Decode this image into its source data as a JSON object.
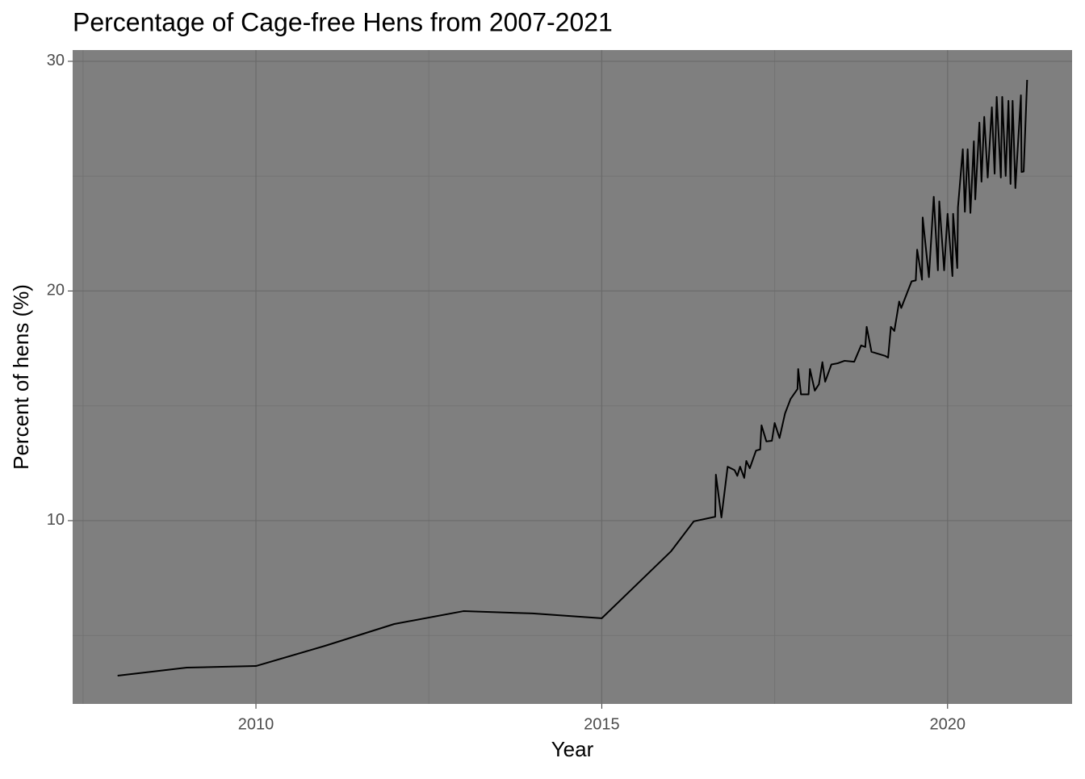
{
  "chart_data": {
    "type": "line",
    "title": "Percentage of Cage-free Hens from 2007-2021",
    "x_label": "Year",
    "y_label": "Percent of hens (%)",
    "x": [
      2008,
      2009,
      2010,
      2011,
      2012,
      2013,
      2014,
      2015,
      2016,
      2016.33,
      2016.64,
      2016.65,
      2016.73,
      2016.82,
      2016.92,
      2016.96,
      2017.0,
      2017.06,
      2017.09,
      2017.14,
      2017.23,
      2017.29,
      2017.31,
      2017.38,
      2017.46,
      2017.5,
      2017.57,
      2017.65,
      2017.73,
      2017.83,
      2017.84,
      2017.88,
      2017.99,
      2018.01,
      2018.08,
      2018.14,
      2018.19,
      2018.23,
      2018.32,
      2018.41,
      2018.51,
      2018.65,
      2018.75,
      2018.81,
      2018.83,
      2018.9,
      2019.1,
      2019.14,
      2019.18,
      2019.23,
      2019.3,
      2019.33,
      2019.42,
      2019.48,
      2019.54,
      2019.56,
      2019.63,
      2019.64,
      2019.73,
      2019.8,
      2019.86,
      2019.88,
      2019.95,
      2020.0,
      2020.07,
      2020.08,
      2020.14,
      2020.15,
      2020.22,
      2020.25,
      2020.29,
      2020.33,
      2020.38,
      2020.4,
      2020.46,
      2020.49,
      2020.53,
      2020.58,
      2020.64,
      2020.68,
      2020.71,
      2020.77,
      2020.79,
      2020.84,
      2020.88,
      2020.91,
      2020.94,
      2020.98,
      2021.06,
      2021.07,
      2021.1,
      2021.15
    ],
    "values": [
      3.25,
      3.6,
      3.67,
      4.55,
      5.5,
      6.06,
      5.96,
      5.75,
      8.66,
      9.97,
      10.17,
      12.0,
      10.14,
      12.35,
      12.2,
      11.95,
      12.35,
      11.86,
      12.6,
      12.28,
      13.05,
      13.1,
      14.15,
      13.45,
      13.48,
      14.25,
      13.6,
      14.67,
      15.3,
      15.73,
      16.6,
      15.5,
      15.5,
      16.6,
      15.66,
      15.94,
      16.9,
      16.05,
      16.8,
      16.85,
      16.96,
      16.92,
      17.63,
      17.56,
      18.44,
      17.35,
      17.17,
      17.1,
      18.44,
      18.26,
      19.54,
      19.26,
      19.96,
      20.42,
      20.46,
      21.8,
      20.49,
      23.2,
      20.6,
      24.1,
      20.9,
      23.9,
      20.9,
      23.36,
      20.65,
      23.36,
      21.0,
      23.64,
      26.17,
      23.45,
      26.17,
      23.4,
      26.52,
      23.99,
      27.33,
      24.76,
      27.58,
      24.94,
      28.0,
      25.11,
      28.45,
      24.94,
      28.45,
      25.01,
      28.28,
      24.66,
      28.28,
      24.48,
      28.52,
      25.18,
      25.2,
      29.19
    ],
    "color": "#000000",
    "xlim": [
      2007.35,
      2021.8
    ],
    "ylim": [
      2.02,
      30.49
    ],
    "xticks": [
      2010,
      2015,
      2020
    ],
    "yticks": [
      10,
      20,
      30
    ],
    "x_minor_ticks": [
      2007.5,
      2012.5,
      2017.5
    ],
    "y_minor_ticks": [
      5,
      15,
      25
    ],
    "grid": true,
    "panel_color": "#7f7f7f"
  }
}
